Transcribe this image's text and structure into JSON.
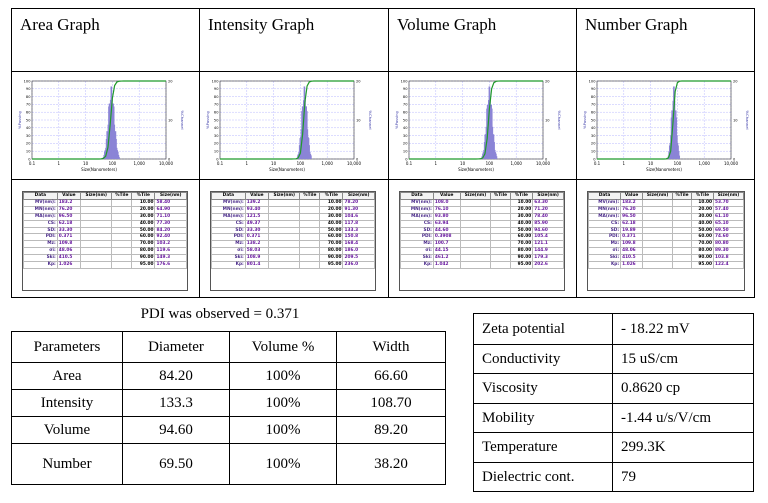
{
  "graphs": [
    {
      "title": "Area Graph",
      "plot": {
        "xlabel": "Size(Nanometers)",
        "left_label": "%Passing",
        "right_label": "%Channel",
        "x_ticks": [
          "0.1",
          "1",
          "10",
          "100",
          "1,000",
          "10,000"
        ],
        "left_ticks": [
          "100",
          "90",
          "80",
          "70",
          "60",
          "50",
          "40",
          "30",
          "20",
          "10",
          "0"
        ],
        "right_ticks": [
          "20",
          "",
          "10",
          "",
          "0"
        ]
      },
      "peak_log": 1.93,
      "spread": 0.16,
      "rows": [
        {
          "label": "MV(nm):",
          "value": "183.2",
          "ptile": "10.00",
          "psize": "58.40"
        },
        {
          "label": "MN(nm):",
          "value": "76.20",
          "ptile": "20.00",
          "psize": "64.90"
        },
        {
          "label": "MA(nm):",
          "value": "96.50",
          "ptile": "30.00",
          "psize": "71.10"
        },
        {
          "label": "CS:",
          "value": "62.18",
          "ptile": "40.00",
          "psize": "77.30"
        },
        {
          "label": "SD:",
          "value": "33.30",
          "ptile": "50.00",
          "psize": "84.20"
        },
        {
          "label": "PDI:",
          "value": "0.371",
          "ptile": "60.00",
          "psize": "92.40"
        },
        {
          "label": "Mz:",
          "value": "109.8",
          "ptile": "70.00",
          "psize": "103.2"
        },
        {
          "label": "σi:",
          "value": "48.06",
          "ptile": "80.00",
          "psize": "119.6"
        },
        {
          "label": "Ski:",
          "value": "410.5",
          "ptile": "90.00",
          "psize": "149.3"
        },
        {
          "label": "Kp:",
          "value": "1.026",
          "ptile": "95.00",
          "psize": "176.6"
        }
      ]
    },
    {
      "title": "Intensity Graph",
      "plot": {
        "xlabel": "Size(Nanometers)",
        "left_label": "%Passing",
        "right_label": "%Channel",
        "x_ticks": [
          "0.1",
          "1",
          "10",
          "100",
          "1,000",
          "10,000"
        ],
        "left_ticks": [
          "100",
          "90",
          "80",
          "70",
          "60",
          "50",
          "40",
          "30",
          "20",
          "10",
          "0"
        ],
        "right_ticks": [
          "20",
          "",
          "10",
          "",
          "0"
        ]
      },
      "peak_log": 2.12,
      "spread": 0.14,
      "rows": [
        {
          "label": "MV(nm):",
          "value": "139.2",
          "ptile": "10.00",
          "psize": "78.20"
        },
        {
          "label": "MN(nm):",
          "value": "93.40",
          "ptile": "20.00",
          "psize": "91.30"
        },
        {
          "label": "MA(nm):",
          "value": "121.5",
          "ptile": "30.00",
          "psize": "104.6"
        },
        {
          "label": "CS:",
          "value": "49.37",
          "ptile": "40.00",
          "psize": "117.8"
        },
        {
          "label": "SD:",
          "value": "33.30",
          "ptile": "50.00",
          "psize": "133.3"
        },
        {
          "label": "PDI:",
          "value": "0.371",
          "ptile": "60.00",
          "psize": "150.8"
        },
        {
          "label": "Mz:",
          "value": "138.2",
          "ptile": "70.00",
          "psize": "168.4"
        },
        {
          "label": "σi:",
          "value": "58.03",
          "ptile": "80.00",
          "psize": "186.0"
        },
        {
          "label": "Ski:",
          "value": "108.9",
          "ptile": "90.00",
          "psize": "209.5"
        },
        {
          "label": "Kp:",
          "value": "801.4",
          "ptile": "95.00",
          "psize": "236.0"
        }
      ]
    },
    {
      "title": "Volume Graph",
      "plot": {
        "xlabel": "Size(Nanometers)",
        "left_label": "%Passing",
        "right_label": "%Channel",
        "x_ticks": [
          "0.1",
          "1",
          "10",
          "100",
          "1,000",
          "10,000"
        ],
        "left_ticks": [
          "100",
          "90",
          "80",
          "70",
          "60",
          "50",
          "40",
          "30",
          "20",
          "10",
          "0"
        ],
        "right_ticks": [
          "20",
          "",
          "10",
          "",
          "0"
        ]
      },
      "peak_log": 1.97,
      "spread": 0.15,
      "rows": [
        {
          "label": "MV(nm):",
          "value": "108.0",
          "ptile": "10.00",
          "psize": "63.30"
        },
        {
          "label": "MN(nm):",
          "value": "76.10",
          "ptile": "20.00",
          "psize": "71.20"
        },
        {
          "label": "MA(nm):",
          "value": "93.80",
          "ptile": "30.00",
          "psize": "78.40"
        },
        {
          "label": "CS:",
          "value": "63.94",
          "ptile": "40.00",
          "psize": "85.90"
        },
        {
          "label": "SD:",
          "value": "44.60",
          "ptile": "50.00",
          "psize": "94.60"
        },
        {
          "label": "PDI:",
          "value": "0.3908",
          "ptile": "60.00",
          "psize": "105.4"
        },
        {
          "label": "Mz:",
          "value": "100.7",
          "ptile": "70.00",
          "psize": "121.1"
        },
        {
          "label": "σi:",
          "value": "44.15",
          "ptile": "80.00",
          "psize": "144.9"
        },
        {
          "label": "Ski:",
          "value": "461.2",
          "ptile": "90.00",
          "psize": "179.3"
        },
        {
          "label": "Kp:",
          "value": "1.042",
          "ptile": "95.00",
          "psize": "202.6"
        }
      ]
    },
    {
      "title": "Number Graph",
      "plot": {
        "xlabel": "Size(Nanometers)",
        "left_label": "%Passing",
        "right_label": "%Channel",
        "x_ticks": [
          "0.1",
          "1",
          "10",
          "100",
          "1,000",
          "10,000"
        ],
        "left_ticks": [
          "100",
          "90",
          "80",
          "70",
          "60",
          "50",
          "40",
          "30",
          "20",
          "10",
          "0"
        ],
        "right_ticks": [
          "20",
          "",
          "10",
          "",
          "0"
        ]
      },
      "peak_log": 1.84,
      "spread": 0.12,
      "rows": [
        {
          "label": "MV(nm):",
          "value": "183.2",
          "ptile": "10.00",
          "psize": "53.70"
        },
        {
          "label": "MN(nm):",
          "value": "76.20",
          "ptile": "20.00",
          "psize": "57.40"
        },
        {
          "label": "MA(nm):",
          "value": "96.50",
          "ptile": "30.00",
          "psize": "61.10"
        },
        {
          "label": "CS:",
          "value": "62.18",
          "ptile": "40.00",
          "psize": "65.10"
        },
        {
          "label": "SD:",
          "value": "19.89",
          "ptile": "50.00",
          "psize": "69.50"
        },
        {
          "label": "PDI:",
          "value": "0.371",
          "ptile": "60.00",
          "psize": "74.60"
        },
        {
          "label": "Mz:",
          "value": "109.8",
          "ptile": "70.00",
          "psize": "80.80"
        },
        {
          "label": "σi:",
          "value": "48.06",
          "ptile": "80.00",
          "psize": "89.30"
        },
        {
          "label": "Ski:",
          "value": "410.5",
          "ptile": "90.00",
          "psize": "103.8"
        },
        {
          "label": "Kp:",
          "value": "1.026",
          "ptile": "95.00",
          "psize": "122.4"
        }
      ]
    }
  ],
  "stats_headers": [
    "Data",
    "Value",
    "Size(nm)",
    "%Tile",
    "%Tile",
    "Size(nm)"
  ],
  "pdi_note": "PDI was observed = 0.371",
  "param_table": {
    "headers": [
      "Parameters",
      "Diameter",
      "Volume %",
      "Width"
    ],
    "rows": [
      [
        "Area",
        "84.20",
        "100%",
        "66.60"
      ],
      [
        "Intensity",
        "133.3",
        "100%",
        "108.70"
      ],
      [
        "Volume",
        "94.60",
        "100%",
        "89.20"
      ],
      [
        "Number",
        "69.50",
        "100%",
        "38.20"
      ]
    ]
  },
  "zeta_table": {
    "rows": [
      [
        "Zeta potential",
        "- 18.22 mV"
      ],
      [
        "Conductivity",
        "15 uS/cm"
      ],
      [
        "Viscosity",
        "0.8620 cp"
      ],
      [
        "Mobility",
        "-1.44 u/s/V/cm"
      ],
      [
        "Temperature",
        "299.3K"
      ],
      [
        "Dielectric cont.",
        "79"
      ]
    ]
  },
  "colors": {
    "bars": "#8b84d6",
    "curve": "#1f9a2a",
    "grid": "#b9b9ff"
  }
}
